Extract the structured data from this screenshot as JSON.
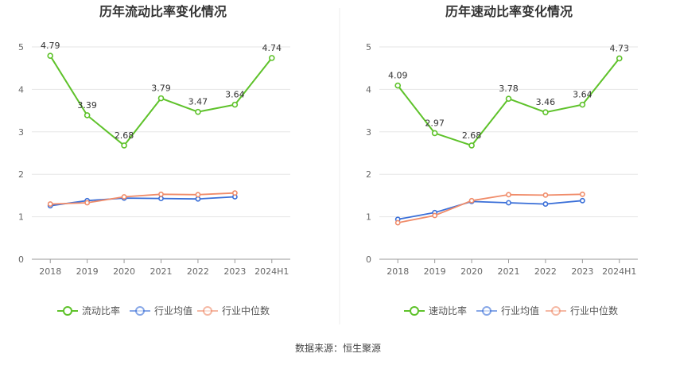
{
  "source_label": "数据来源：恒生聚源",
  "colors": {
    "main": "#5ec22a",
    "industry_avg": "#3a6fd8",
    "industry_median": "#f08c6a"
  },
  "chart_data": [
    {
      "type": "line",
      "title": "历年流动比率变化情况",
      "categories": [
        "2018",
        "2019",
        "2020",
        "2021",
        "2022",
        "2023",
        "2024H1"
      ],
      "ylim": [
        0,
        5
      ],
      "yticks": [
        "0",
        "1",
        "2",
        "3",
        "4",
        "5"
      ],
      "legend_position": "bottom-center",
      "series": [
        {
          "name": "流动比率",
          "values": [
            4.79,
            3.39,
            2.68,
            3.79,
            3.47,
            3.64,
            4.74
          ],
          "labels": [
            "4.79",
            "3.39",
            "2.68",
            "3.79",
            "3.47",
            "3.64",
            "4.74"
          ]
        },
        {
          "name": "行业均值",
          "values": [
            1.26,
            1.38,
            1.44,
            1.43,
            1.42,
            1.47,
            null
          ]
        },
        {
          "name": "行业中位数",
          "values": [
            1.3,
            1.33,
            1.47,
            1.53,
            1.52,
            1.56,
            null
          ]
        }
      ]
    },
    {
      "type": "line",
      "title": "历年速动比率变化情况",
      "categories": [
        "2018",
        "2019",
        "2020",
        "2021",
        "2022",
        "2023",
        "2024H1"
      ],
      "ylim": [
        0,
        5
      ],
      "yticks": [
        "0",
        "1",
        "2",
        "3",
        "4",
        "5"
      ],
      "legend_position": "bottom-center",
      "series": [
        {
          "name": "速动比率",
          "values": [
            4.09,
            2.97,
            2.68,
            3.78,
            3.46,
            3.64,
            4.73
          ],
          "labels": [
            "4.09",
            "2.97",
            "2.68",
            "3.78",
            "3.46",
            "3.64",
            "4.73"
          ]
        },
        {
          "name": "行业均值",
          "values": [
            0.94,
            1.1,
            1.36,
            1.33,
            1.3,
            1.38,
            null
          ]
        },
        {
          "name": "行业中位数",
          "values": [
            0.86,
            1.03,
            1.38,
            1.52,
            1.51,
            1.53,
            null
          ]
        }
      ]
    }
  ]
}
